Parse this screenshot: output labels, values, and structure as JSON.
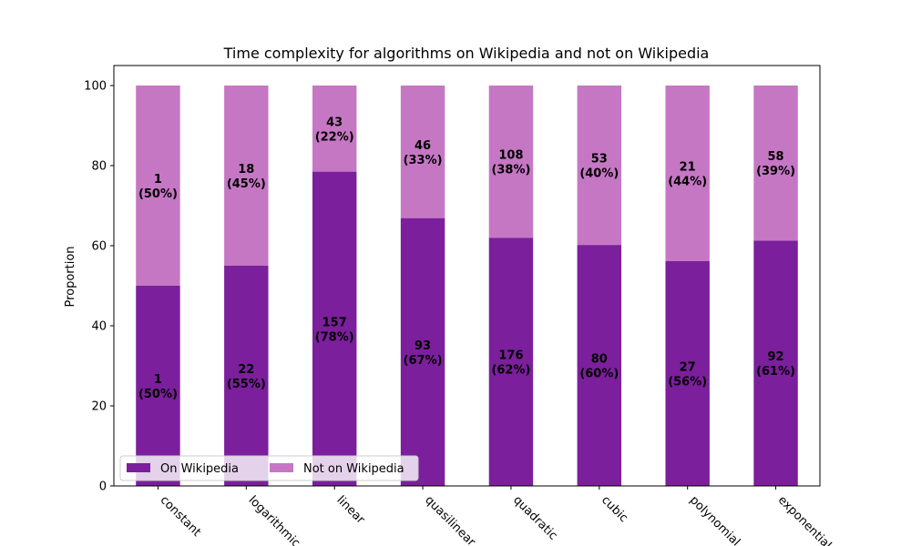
{
  "chart_data": {
    "type": "bar",
    "stacked": true,
    "title": "Time complexity for algorithms on Wikipedia and not on Wikipedia",
    "xlabel": "",
    "ylabel": "Proportion",
    "ylim": [
      0,
      105
    ],
    "yticks": [
      "0",
      "20",
      "40",
      "60",
      "80",
      "100"
    ],
    "grid": false,
    "legend_position": "lower-left",
    "categories": [
      "constant",
      "logarithmic",
      "linear",
      "quasilinear",
      "quadratic",
      "cubic",
      "polynomial",
      "exponential"
    ],
    "series": [
      {
        "name": "On Wikipedia",
        "color": "#7b1f9c",
        "values": [
          50,
          55,
          78.5,
          66.9,
          62,
          60.2,
          56.2,
          61.3
        ],
        "labels": [
          [
            "1",
            "(50%)"
          ],
          [
            "22",
            "(55%)"
          ],
          [
            "157",
            "(78%)"
          ],
          [
            "93",
            "(67%)"
          ],
          [
            "176",
            "(62%)"
          ],
          [
            "80",
            "(60%)"
          ],
          [
            "27",
            "(56%)"
          ],
          [
            "92",
            "(61%)"
          ]
        ]
      },
      {
        "name": "Not on Wikipedia",
        "color": "#c677c4",
        "values": [
          50,
          45,
          21.5,
          33.1,
          38,
          39.8,
          43.8,
          38.7
        ],
        "labels": [
          [
            "1",
            "(50%)"
          ],
          [
            "18",
            "(45%)"
          ],
          [
            "43",
            "(22%)"
          ],
          [
            "46",
            "(33%)"
          ],
          [
            "108",
            "(38%)"
          ],
          [
            "53",
            "(40%)"
          ],
          [
            "21",
            "(44%)"
          ],
          [
            "58",
            "(39%)"
          ]
        ]
      }
    ]
  }
}
